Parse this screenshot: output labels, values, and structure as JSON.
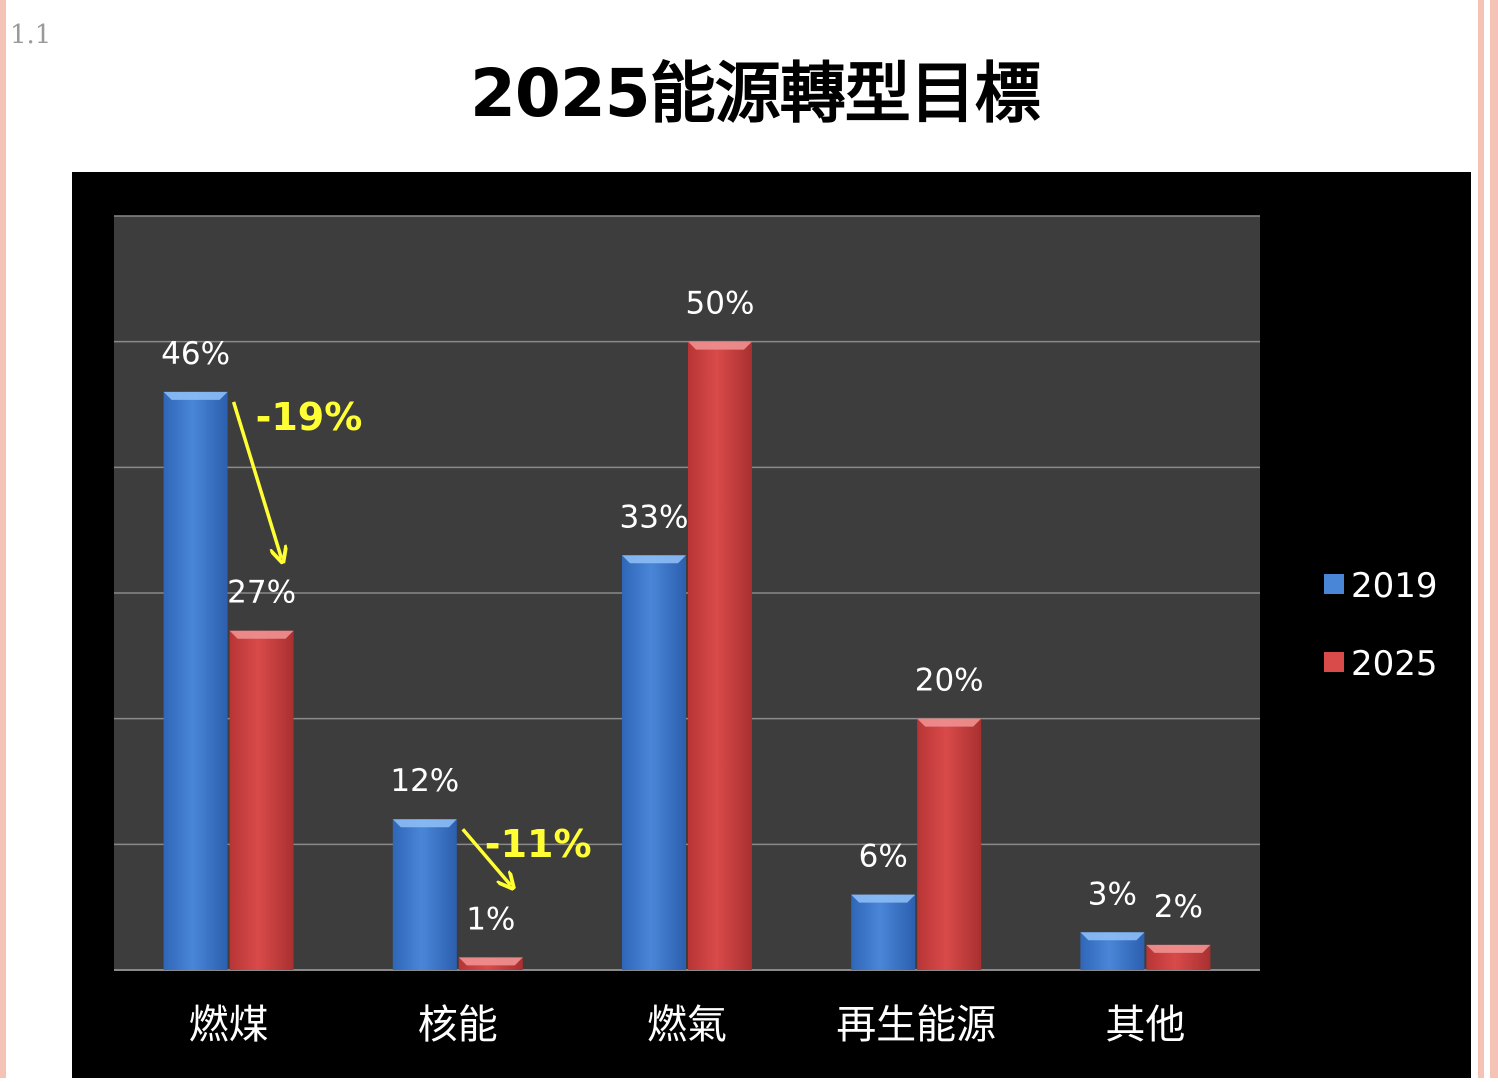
{
  "slide_number": "1.1",
  "title": "2025能源轉型目標",
  "colors": {
    "background": "#000000",
    "plot_area": "#3d3d3d",
    "gridline": "#8a8a8a",
    "series_2019": "#4a86d8",
    "series_2025": "#d94a4a",
    "annotation": "#ffff33",
    "label": "#ffffff"
  },
  "chart_data": {
    "type": "bar",
    "title": "2025能源轉型目標",
    "xlabel": "",
    "ylabel": "",
    "ylim": [
      0,
      60
    ],
    "grid": true,
    "legend_position": "right",
    "categories": [
      "燃煤",
      "核能",
      "燃氣",
      "再生能源",
      "其他"
    ],
    "series": [
      {
        "name": "2019",
        "values": [
          46,
          12,
          33,
          6,
          3
        ],
        "labels": [
          "46%",
          "12%",
          "33%",
          "6%",
          "3%"
        ]
      },
      {
        "name": "2025",
        "values": [
          27,
          1,
          50,
          20,
          2
        ],
        "labels": [
          "27%",
          "1%",
          "50%",
          "20%",
          "2%"
        ]
      }
    ],
    "annotations": [
      {
        "text": "-19%",
        "category": "燃煤"
      },
      {
        "text": "-11%",
        "category": "核能"
      }
    ]
  }
}
